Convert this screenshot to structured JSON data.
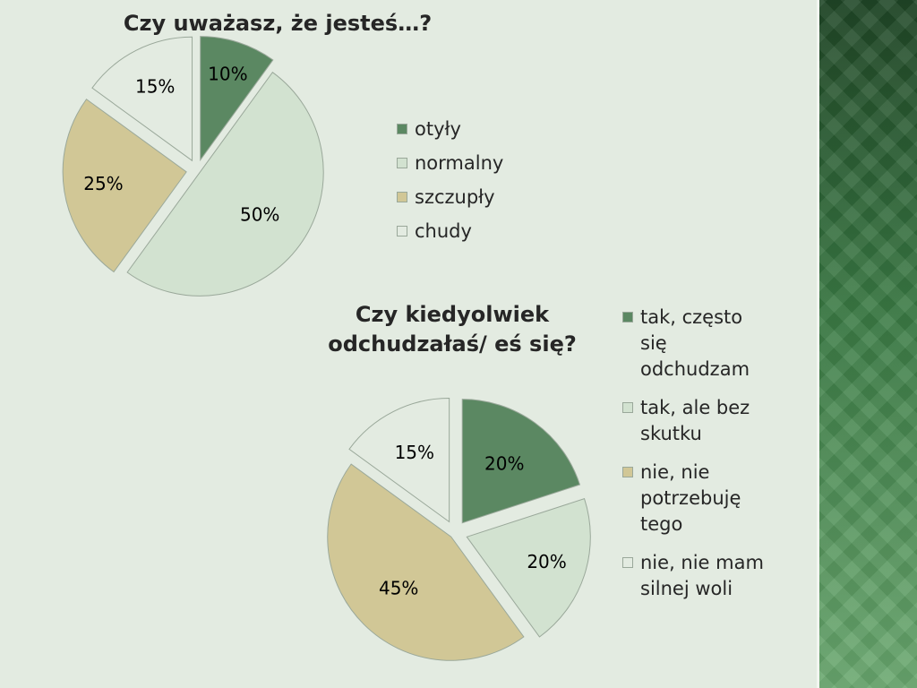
{
  "colors": {
    "slide_bg": "#e3ebe1",
    "series": [
      "#5b8862",
      "#d2e2d0",
      "#d1c796",
      "#e3ebe1"
    ],
    "stroke": "#9aa89a"
  },
  "chart_data": [
    {
      "type": "pie",
      "title": "Czy uważasz, że jesteś…?",
      "categories": [
        "otyły",
        "normalny",
        "szczupły",
        "chudy"
      ],
      "values": [
        10,
        50,
        25,
        15
      ],
      "labels": [
        "10%",
        "50%",
        "25%",
        "15%"
      ],
      "legend": "right"
    },
    {
      "type": "pie",
      "title_lines": [
        "Czy kiedyolwiek",
        "odchudzałaś/ eś się?"
      ],
      "categories": [
        "tak, często się odchudzam",
        "tak, ale bez skutku",
        "nie, nie potrzebuję tego",
        "nie, nie mam silnej woli"
      ],
      "legend_lines": [
        [
          "tak, często",
          "się",
          "odchudzam"
        ],
        [
          "tak, ale bez",
          "skutku"
        ],
        [
          "nie, nie",
          "potrzebuję",
          "tego"
        ],
        [
          "nie, nie mam",
          "silnej woli"
        ]
      ],
      "values": [
        20,
        20,
        45,
        15
      ],
      "labels": [
        "20%",
        "20%",
        "45%",
        "15%"
      ],
      "legend": "right"
    }
  ]
}
